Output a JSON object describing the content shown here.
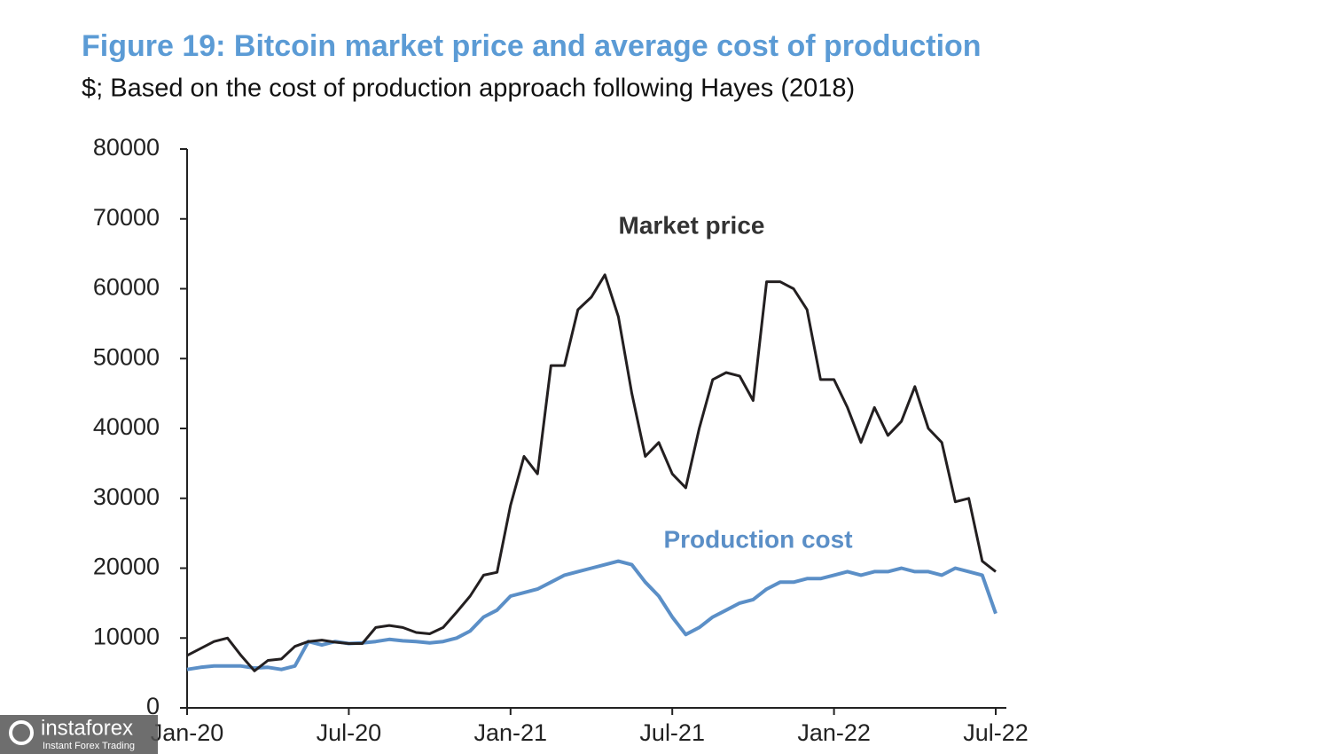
{
  "chart_data": {
    "type": "line",
    "title": "Figure 19: Bitcoin market price and average cost of production",
    "subtitle": "$; Based on the cost of production approach following Hayes (2018)",
    "categories": [
      "Jan-20",
      null,
      null,
      null,
      null,
      null,
      null,
      null,
      null,
      null,
      null,
      null,
      "Jul-20",
      null,
      null,
      null,
      null,
      null,
      null,
      null,
      null,
      null,
      null,
      null,
      "Jan-21",
      null,
      null,
      null,
      null,
      null,
      null,
      null,
      null,
      null,
      null,
      null,
      "Jul-21",
      null,
      null,
      null,
      null,
      null,
      null,
      null,
      null,
      null,
      null,
      null,
      "Jan-22",
      null,
      null,
      null,
      null,
      null,
      null,
      null,
      null,
      null,
      null,
      null,
      "Jul-22"
    ],
    "series": [
      {
        "name": "Market price",
        "color": "#231f20",
        "values": [
          7500,
          8500,
          9500,
          10000,
          7500,
          5300,
          6800,
          7000,
          8800,
          9500,
          9700,
          9400,
          9200,
          9200,
          11500,
          11800,
          11500,
          10800,
          10600,
          11500,
          13700,
          16000,
          19000,
          19400,
          29000,
          36000,
          33500,
          49000,
          49000,
          57000,
          58800,
          62000,
          56000,
          45000,
          36000,
          38000,
          33500,
          31500,
          40000,
          47000,
          48000,
          47500,
          44000,
          61000,
          61000,
          60000,
          57000,
          47000,
          47000,
          43000,
          38000,
          43000,
          39000,
          41000,
          46000,
          40000,
          38000,
          29500,
          30000,
          21000,
          19500
        ]
      },
      {
        "name": "Production cost",
        "color": "#5b8fc7",
        "values": [
          5500,
          5800,
          6000,
          6000,
          6000,
          5700,
          5800,
          5500,
          6000,
          9500,
          9000,
          9500,
          9200,
          9300,
          9500,
          9800,
          9600,
          9500,
          9300,
          9500,
          10000,
          11000,
          13000,
          14000,
          16000,
          16500,
          17000,
          18000,
          19000,
          19500,
          20000,
          20500,
          21000,
          20500,
          18000,
          16000,
          13000,
          10500,
          11500,
          13000,
          14000,
          15000,
          15500,
          17000,
          18000,
          18000,
          18500,
          18500,
          19000,
          19500,
          19000,
          19500,
          19500,
          20000,
          19500,
          19500,
          19000,
          20000,
          19500,
          19000,
          13500
        ]
      }
    ],
    "ylim": [
      0,
      80000
    ],
    "yticks": [
      0,
      10000,
      20000,
      30000,
      40000,
      50000,
      60000,
      70000,
      80000
    ],
    "grid": false
  },
  "watermark": {
    "brand": "instaforex",
    "tagline": "Instant Forex Trading"
  }
}
